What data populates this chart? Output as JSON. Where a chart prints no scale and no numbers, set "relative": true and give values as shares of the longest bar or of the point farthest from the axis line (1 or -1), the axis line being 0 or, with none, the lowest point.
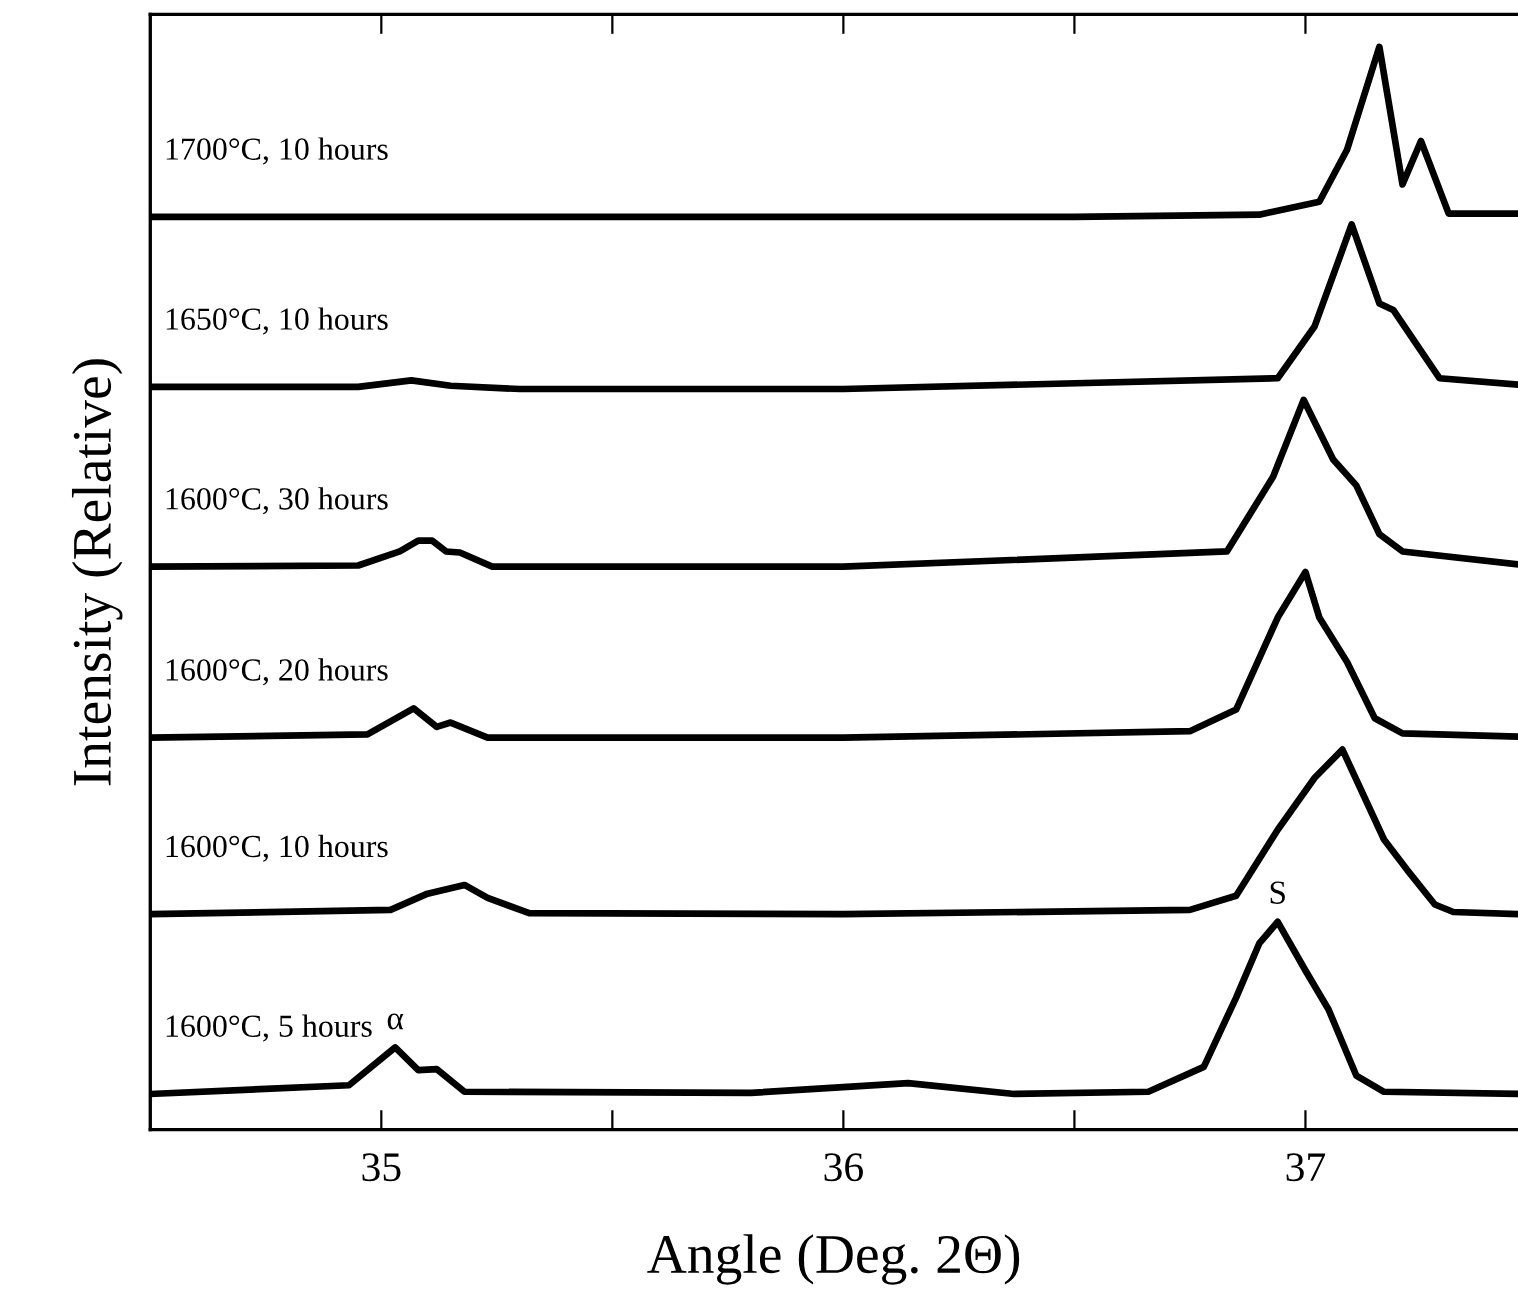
{
  "chart_data": {
    "type": "line",
    "relative": true,
    "xlabel": "Angle (Deg. 2Θ)",
    "ylabel": "Intensity (Relative)",
    "xlim": [
      34.5,
      37.46
    ],
    "xticks": [
      35,
      {
        "value": 35.5,
        "label": null
      },
      36,
      {
        "value": 36.5,
        "label": null
      },
      37
    ],
    "grid": false,
    "legend": false,
    "marker": "none",
    "line_style": "solid",
    "tick_labels": "x",
    "series": [
      {
        "name": "1700°C, 10 hours",
        "color": "#000000",
        "x": [
          34.5,
          35.5,
          36.5,
          36.9,
          37.03,
          37.09,
          37.16,
          37.21,
          37.25,
          37.31,
          37.46
        ],
        "values": [
          0.843,
          0.843,
          0.843,
          0.845,
          0.857,
          0.905,
          1.0,
          0.873,
          0.913,
          0.846,
          0.846
        ]
      },
      {
        "name": "1650°C, 10 hours",
        "color": "#000000",
        "x": [
          34.5,
          34.95,
          35.065,
          35.15,
          35.3,
          36.0,
          36.94,
          37.02,
          37.1,
          37.16,
          37.19,
          37.29,
          37.46
        ],
        "values": [
          0.686,
          0.686,
          0.692,
          0.687,
          0.684,
          0.684,
          0.694,
          0.742,
          0.836,
          0.763,
          0.757,
          0.694,
          0.688
        ]
      },
      {
        "name": "1600°C, 30 hours",
        "color": "#000000",
        "x": [
          34.5,
          34.95,
          35.04,
          35.08,
          35.11,
          35.14,
          35.17,
          35.24,
          36.0,
          36.83,
          36.93,
          36.996,
          37.06,
          37.11,
          37.16,
          37.21,
          37.46
        ],
        "values": [
          0.52,
          0.521,
          0.534,
          0.544,
          0.544,
          0.534,
          0.533,
          0.52,
          0.52,
          0.534,
          0.603,
          0.674,
          0.619,
          0.595,
          0.55,
          0.534,
          0.522
        ]
      },
      {
        "name": "1600°C, 20 hours",
        "color": "#000000",
        "x": [
          34.5,
          34.97,
          35.07,
          35.12,
          35.15,
          35.23,
          36.0,
          36.75,
          36.85,
          36.94,
          37.0,
          37.03,
          37.09,
          37.15,
          37.21,
          37.46
        ],
        "values": [
          0.362,
          0.365,
          0.389,
          0.372,
          0.376,
          0.362,
          0.362,
          0.368,
          0.388,
          0.473,
          0.515,
          0.473,
          0.432,
          0.38,
          0.366,
          0.363
        ]
      },
      {
        "name": "1600°C, 10 hours",
        "color": "#000000",
        "x": [
          34.5,
          35.02,
          35.1,
          35.18,
          35.23,
          35.32,
          36.0,
          36.75,
          36.85,
          36.94,
          37.02,
          37.08,
          37.17,
          37.22,
          37.28,
          37.32,
          37.46
        ],
        "values": [
          0.199,
          0.203,
          0.218,
          0.226,
          0.214,
          0.2,
          0.199,
          0.203,
          0.216,
          0.277,
          0.325,
          0.351,
          0.268,
          0.24,
          0.208,
          0.201,
          0.199
        ]
      },
      {
        "name": "1600°C, 5 hours",
        "color": "#000000",
        "x": [
          34.5,
          34.93,
          35.03,
          35.08,
          35.12,
          35.18,
          35.8,
          36.14,
          36.37,
          36.66,
          36.78,
          36.85,
          36.9,
          36.94,
          37.0,
          37.05,
          37.11,
          37.17,
          37.46
        ],
        "values": [
          0.033,
          0.041,
          0.076,
          0.055,
          0.056,
          0.035,
          0.034,
          0.043,
          0.033,
          0.035,
          0.058,
          0.122,
          0.172,
          0.192,
          0.147,
          0.111,
          0.05,
          0.035,
          0.033
        ]
      }
    ],
    "annotations": [
      {
        "text": "α",
        "x": 35.03,
        "y": 0.076
      },
      {
        "text": "S",
        "x": 36.94,
        "y": 0.192
      }
    ]
  }
}
